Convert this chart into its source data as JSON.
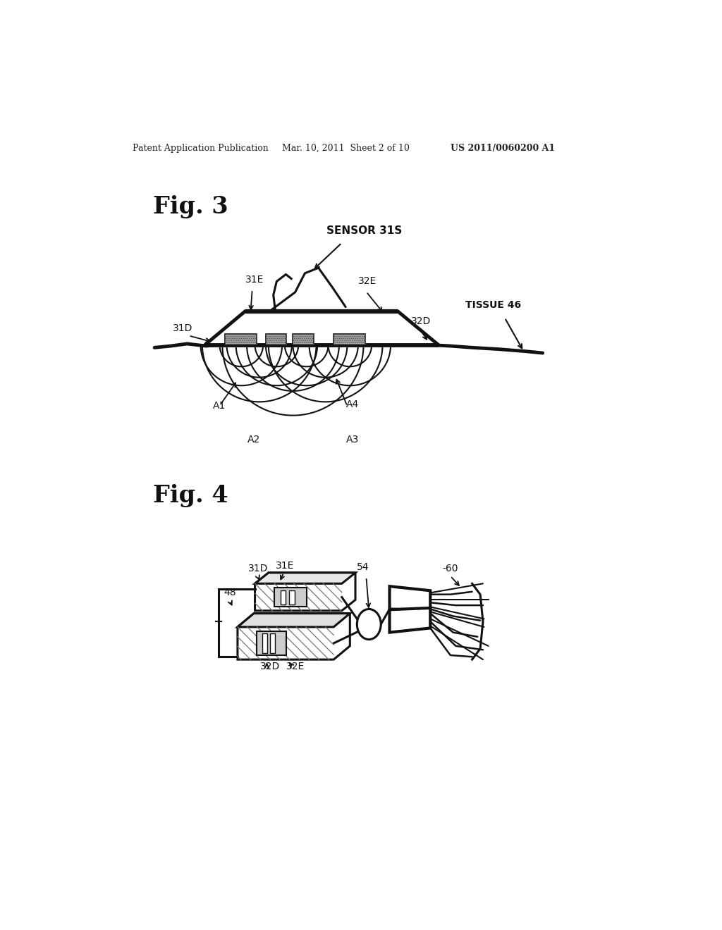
{
  "background_color": "#ffffff",
  "header_left": "Patent Application Publication",
  "header_mid": "Mar. 10, 2011  Sheet 2 of 10",
  "header_right": "US 2011/0060200 A1",
  "fig3_label": "Fig. 3",
  "fig4_label": "Fig. 4",
  "lw_thin": 1.5,
  "lw_main": 2.2,
  "lw_thick": 3.5,
  "color": "#111111"
}
